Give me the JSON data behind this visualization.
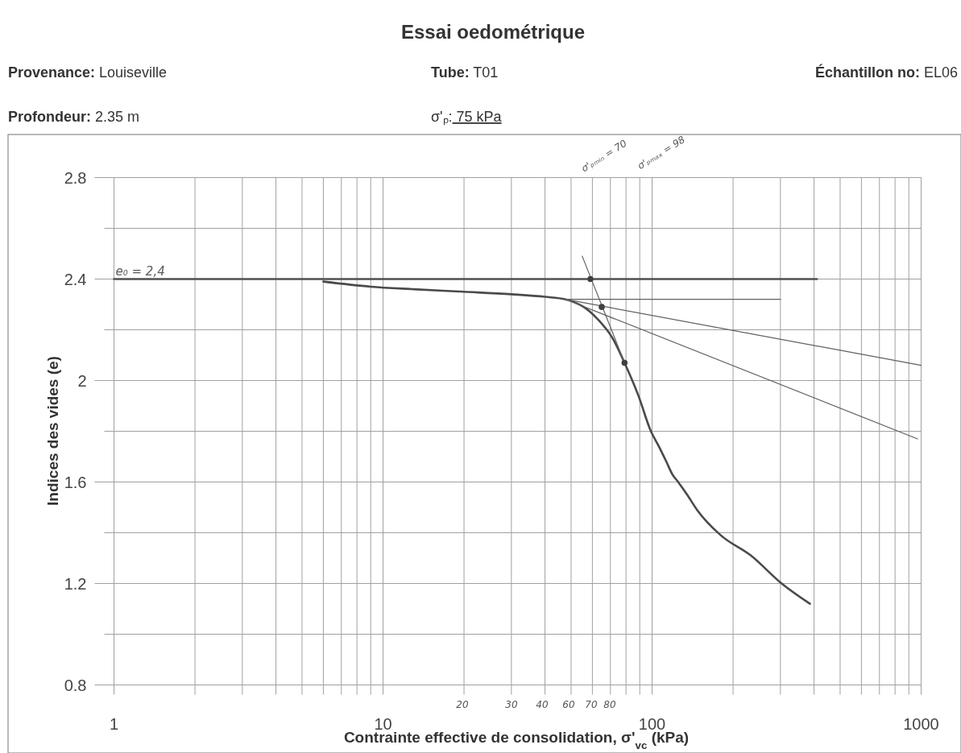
{
  "chart_data": {
    "type": "line",
    "title": "Essai oedométrique",
    "xlabel": "Contrainte effective de consolidation, σ'$_{vc}$ (kPa)",
    "ylabel": "Indices des vides (e)",
    "annotations": [
      "Provenance: Louiseville",
      "Tube: T01",
      "Échantillon no: EL06",
      "Profondeur: 2.35 m",
      "σ'ₚ: 75 kPa",
      "σ'ₚₘᵢₙ = 70",
      "σ'ₚₘₐₓ = 98",
      "20",
      "30",
      "40",
      "60",
      "70",
      "80"
    ],
    "log": "x",
    "xlim": [
      1,
      1000
    ],
    "xticks": [
      1,
      {
        "value": 2,
        "label": null
      },
      {
        "value": 3,
        "label": null
      },
      {
        "value": 4,
        "label": null
      },
      {
        "value": 5,
        "label": null
      },
      {
        "value": 6,
        "label": null
      },
      {
        "value": 7,
        "label": null
      },
      {
        "value": 8,
        "label": null
      },
      {
        "value": 9,
        "label": null
      },
      10,
      {
        "value": 20,
        "label": null
      },
      {
        "value": 30,
        "label": null
      },
      {
        "value": 40,
        "label": null
      },
      {
        "value": 50,
        "label": null
      },
      {
        "value": 60,
        "label": null
      },
      {
        "value": 70,
        "label": null
      },
      {
        "value": 80,
        "label": null
      },
      {
        "value": 90,
        "label": null
      },
      100,
      {
        "value": 200,
        "label": null
      },
      {
        "value": 300,
        "label": null
      },
      {
        "value": 400,
        "label": null
      },
      {
        "value": 500,
        "label": null
      },
      {
        "value": 600,
        "label": null
      },
      {
        "value": 700,
        "label": null
      },
      {
        "value": 800,
        "label": null
      },
      {
        "value": 900,
        "label": null
      },
      1000
    ],
    "ylim": [
      0.8,
      2.8
    ],
    "yticks": [
      0.8,
      {
        "value": 1,
        "label": null
      },
      1.2,
      {
        "value": 1.4,
        "label": null
      },
      1.6,
      {
        "value": 1.8,
        "label": null
      },
      2,
      {
        "value": 2.2,
        "label": null
      },
      2.4,
      {
        "value": 2.6,
        "label": null
      },
      2.8
    ],
    "grid": true,
    "series": [
      {
        "name": "e₀ = 2,4",
        "color": "#505050",
        "x": [
          1,
          410
        ],
        "values": [
          2.4,
          2.4
        ]
      },
      {
        "color": "#4a4a4a",
        "x": [
          6,
          9,
          13,
          20,
          30,
          40,
          47.7,
          51,
          55.7,
          63,
          71,
          79,
          89,
          99,
          106,
          113,
          119,
          125,
          135,
          147,
          180,
          233,
          303,
          386
        ],
        "values": [
          2.39,
          2.37,
          2.36,
          2.35,
          2.34,
          2.33,
          2.32,
          2.31,
          2.29,
          2.24,
          2.17,
          2.07,
          1.94,
          1.8,
          1.74,
          1.68,
          1.63,
          1.6,
          1.55,
          1.49,
          1.39,
          1.31,
          1.2,
          1.12
        ]
      },
      {
        "color": "#606060",
        "x": [
          47.7,
          300
        ],
        "values": [
          2.32,
          2.32
        ]
      },
      {
        "color": "#606060",
        "x": [
          47.7,
          1000
        ],
        "values": [
          2.32,
          2.06
        ]
      },
      {
        "color": "#606060",
        "x": [
          47.7,
          970
        ],
        "values": [
          2.32,
          1.77
        ]
      },
      {
        "color": "#606060",
        "x": [
          55,
          79
        ],
        "values": [
          2.49,
          2.07
        ]
      },
      {
        "type": "scatter",
        "color": "#404040",
        "marker": "circle",
        "x": [
          59,
          65,
          79
        ],
        "values": [
          2.4,
          2.29,
          2.07
        ]
      }
    ]
  }
}
